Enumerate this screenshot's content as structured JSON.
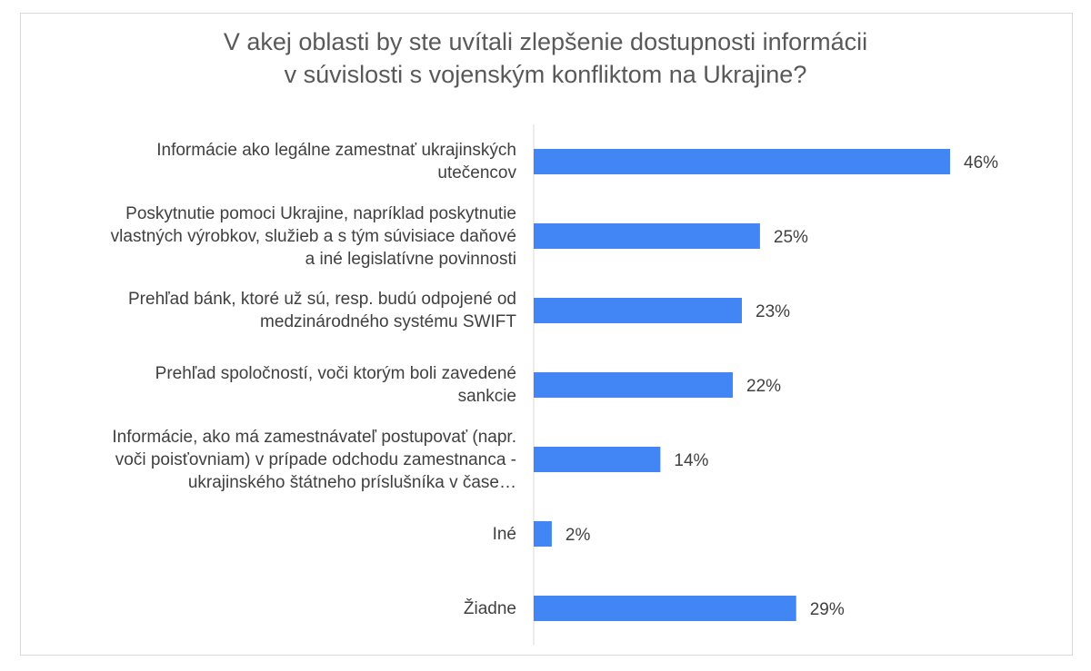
{
  "chart_data": {
    "type": "bar",
    "orientation": "horizontal",
    "title_lines": [
      "V akej oblasti by ste uvítali zlepšenie dostupnosti informácii",
      "v súvislosti s vojenským konfliktom na Ukrajine?"
    ],
    "categories": [
      [
        "Informácie ako legálne zamestnať ukrajinských",
        "utečencov"
      ],
      [
        "Poskytnutie pomoci Ukrajine, napríklad poskytnutie",
        "vlastných výrobkov, služieb a s tým súvisiace daňové",
        "a iné legislatívne povinnosti"
      ],
      [
        "Prehľad bánk, ktoré už sú, resp. budú odpojené od",
        "medzinárodného systému SWIFT"
      ],
      [
        "Prehľad spoločností, voči ktorým boli zavedené",
        "sankcie"
      ],
      [
        "Informácie, ako má zamestnávateľ postupovať (napr.",
        "voči poisťovniam) v prípade odchodu zamestnanca -",
        "ukrajinského štátneho príslušníka v čase…"
      ],
      [
        "Iné"
      ],
      [
        "Žiadne"
      ]
    ],
    "values": [
      46,
      25,
      23,
      22,
      14,
      2,
      29
    ],
    "value_labels": [
      "46%",
      "25%",
      "23%",
      "22%",
      "14%",
      "2%",
      "29%"
    ],
    "bar_color": "#4285f4",
    "xlim": [
      0,
      50
    ],
    "grid": false,
    "legend": "none"
  }
}
